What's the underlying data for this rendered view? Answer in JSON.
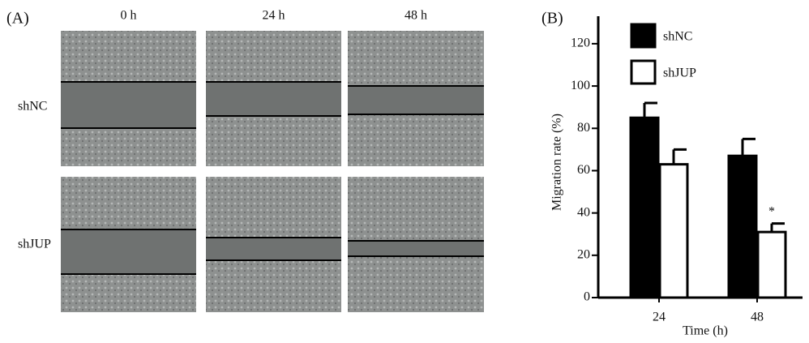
{
  "panel_a": {
    "label": "(A)",
    "columns": [
      "0 h",
      "24 h",
      "48 h"
    ],
    "rows": [
      "shNC",
      "shJUP"
    ]
  },
  "chart_data": {
    "type": "bar",
    "panel_label": "(B)",
    "x_label": "Time (h)",
    "y_label": "Migration rate (%)",
    "categories": [
      "24",
      "48"
    ],
    "series": [
      {
        "name": "shNC",
        "color": "#000000",
        "values": [
          85,
          67
        ],
        "errors": [
          7,
          8
        ]
      },
      {
        "name": "shJUP",
        "color": "#ffffff",
        "values": [
          63,
          31
        ],
        "errors": [
          7,
          4
        ]
      }
    ],
    "annotation": "*",
    "ylim": [
      0,
      133
    ],
    "yticks": [
      0,
      20,
      40,
      60,
      80,
      100,
      120
    ]
  }
}
